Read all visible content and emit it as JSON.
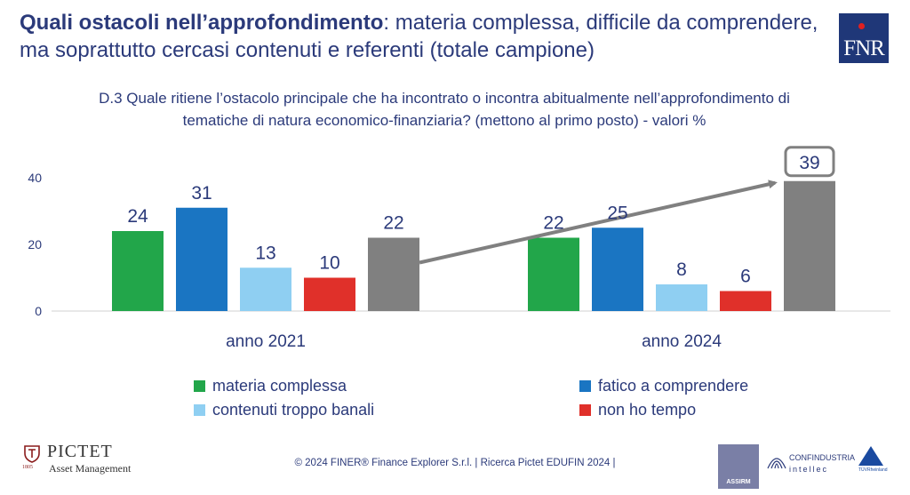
{
  "header": {
    "title_bold": "Quali ostacoli nell’approfondimento",
    "title_rest": ": materia complessa, difficile da comprendere, ma soprattutto cercasi contenuti e referenti (totale campione)",
    "logo_text": "FNR"
  },
  "question": {
    "line1": "D.3 Quale ritiene l’ostacolo principale che ha incontrato o incontra abitualmente nell’approfondimento di",
    "line2": "tematiche di natura economico-finanziaria? (mettono al primo posto) - valori %"
  },
  "chart_data": {
    "type": "bar",
    "categories": [
      "anno 2021",
      "anno 2024"
    ],
    "series": [
      {
        "name": "materia complessa",
        "color": "#22a64a",
        "values": [
          24,
          22
        ]
      },
      {
        "name": "fatico a comprendere",
        "color": "#1a75c2",
        "values": [
          31,
          25
        ]
      },
      {
        "name": "contenuti troppo banali",
        "color": "#8fcff2",
        "values": [
          13,
          8
        ]
      },
      {
        "name": "non ho tempo",
        "color": "#e0302a",
        "values": [
          10,
          6
        ]
      },
      {
        "name": "",
        "color": "#808080",
        "values": [
          22,
          39
        ]
      }
    ],
    "yticks": [
      0,
      20,
      40
    ],
    "ylim": [
      0,
      40
    ],
    "grid": false,
    "legend_position": "bottom",
    "annotations": [
      {
        "type": "arrow",
        "from_series": 4,
        "from_category": 0,
        "to_series": 4,
        "to_category": 1
      },
      {
        "type": "boxed-label",
        "series": 4,
        "category": 1
      }
    ]
  },
  "footer": {
    "copyright": "© 2024 FINER® Finance Explorer S.r.l. | Ricerca Pictet EDUFIN 2024 |",
    "pictet_name": "PICTET",
    "pictet_sub": "Asset Management",
    "pictet_year": "1805",
    "assirm_label": "ASSIRM",
    "confindustria_line1": "CONFINDUSTRIA",
    "confindustria_line2": "intellec",
    "tuv_label": "TÜVRheinland"
  }
}
